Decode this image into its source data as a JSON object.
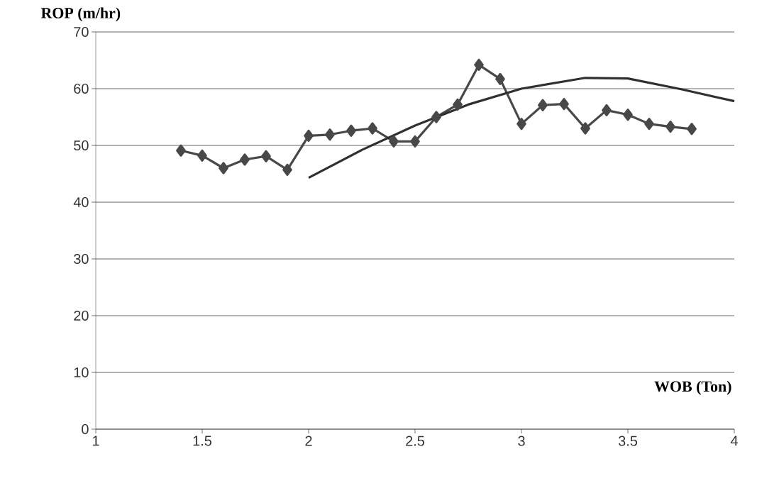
{
  "chart_data": {
    "type": "line",
    "xlabel": "WOB (Ton)",
    "ylabel": "ROP (m/hr)",
    "xlim": [
      1,
      4
    ],
    "ylim": [
      0,
      70
    ],
    "xticks": [
      1,
      1.5,
      2,
      2.5,
      3,
      3.5,
      4
    ],
    "yticks": [
      0,
      10,
      20,
      30,
      40,
      50,
      60,
      70
    ],
    "grid": "y",
    "marker": "diamond",
    "series": [
      {
        "color": "#484848",
        "x": [
          1.4,
          1.5,
          1.6,
          1.7,
          1.8,
          1.9,
          2.0,
          2.1,
          2.2,
          2.3,
          2.4,
          2.5,
          2.6,
          2.7,
          2.8,
          2.9,
          3.0,
          3.1,
          3.2,
          3.3,
          3.4,
          3.5,
          3.6,
          3.7,
          3.8
        ],
        "values": [
          49.1,
          48.2,
          46.0,
          47.5,
          48.1,
          45.7,
          51.7,
          51.9,
          52.6,
          53.0,
          50.7,
          50.7,
          55.0,
          57.2,
          64.2,
          61.7,
          53.8,
          57.1,
          57.3,
          53.0,
          56.2,
          55.4,
          53.8,
          53.3,
          52.9
        ]
      },
      {
        "type": "line",
        "marker": "none",
        "color": "#303030",
        "x": [
          2.0,
          2.25,
          2.5,
          2.75,
          3.0,
          3.3,
          3.5,
          3.75,
          4.0
        ],
        "values": [
          44.3,
          49.2,
          53.5,
          57.2,
          60.0,
          61.9,
          61.8,
          59.9,
          57.8
        ]
      }
    ]
  }
}
